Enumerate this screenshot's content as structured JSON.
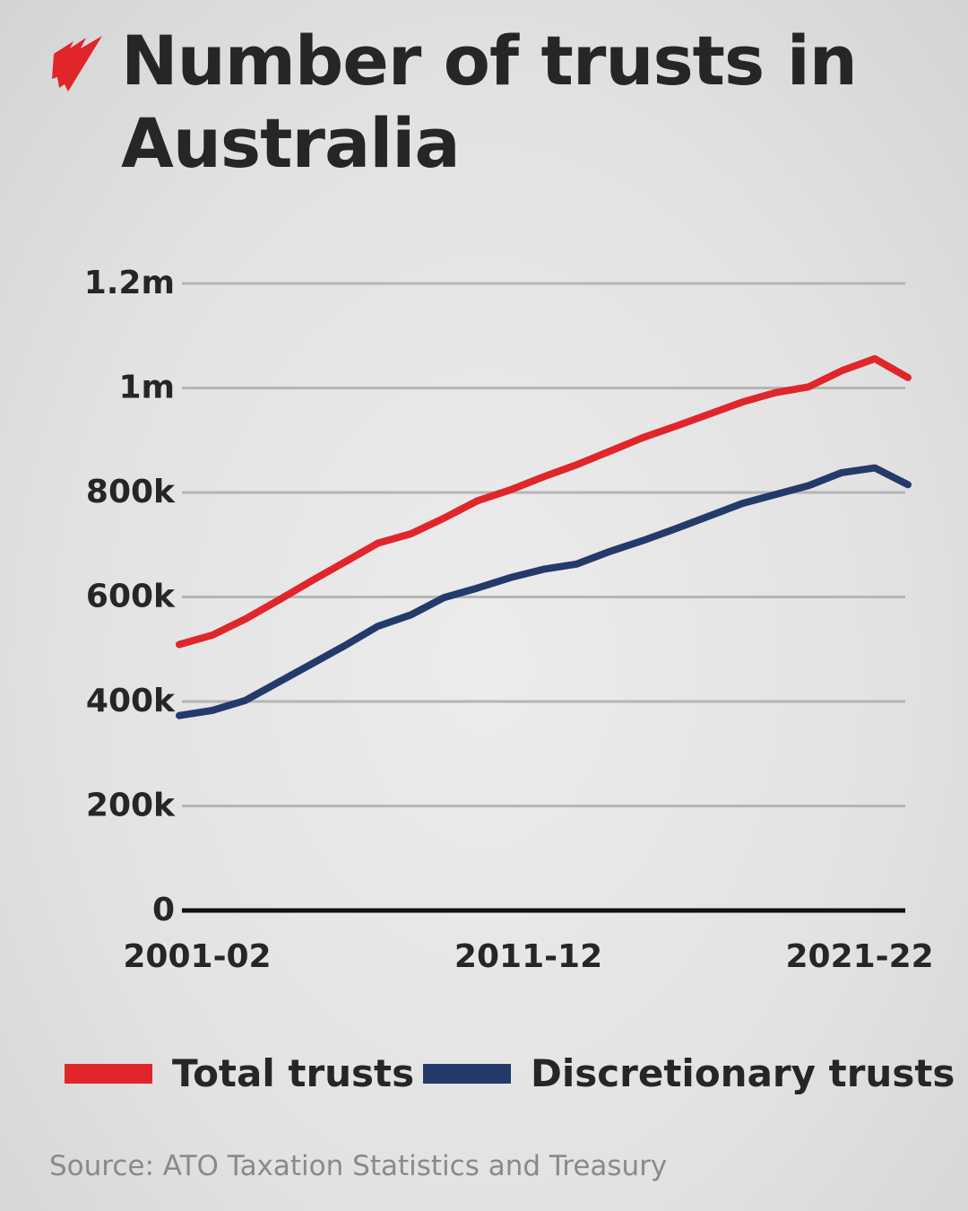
{
  "chart_data": {
    "type": "line",
    "title": "Number of trusts in Australia",
    "source": "Source: ATO Taxation Statistics and Treasury",
    "categories": [
      "2001-02",
      null,
      null,
      null,
      null,
      null,
      null,
      null,
      null,
      null,
      "2011-12",
      null,
      null,
      null,
      null,
      null,
      null,
      null,
      null,
      null,
      "2021-22",
      null,
      null
    ],
    "series": [
      {
        "name": "Total trusts",
        "color": "#e0262b",
        "values": [
          509000,
          527000,
          558000,
          594000,
          631000,
          667000,
          703000,
          721000,
          751000,
          784000,
          805000,
          830000,
          853000,
          879000,
          905000,
          927000,
          950000,
          973000,
          991000,
          1002000,
          1033000,
          1056000,
          1020000
        ]
      },
      {
        "name": "Discretionary trusts",
        "color": "#233a6b",
        "values": [
          373000,
          383000,
          402000,
          437000,
          472000,
          507000,
          544000,
          566000,
          599000,
          617000,
          637000,
          653000,
          663000,
          687000,
          708000,
          731000,
          755000,
          779000,
          796000,
          813000,
          838000,
          847000,
          815000
        ]
      }
    ],
    "ylim": [
      0,
      1200000
    ],
    "yticks": [
      0,
      {
        "value": 200000,
        "label": "200k"
      },
      {
        "value": 400000,
        "label": "400k"
      },
      {
        "value": 600000,
        "label": "600k"
      },
      {
        "value": 800000,
        "label": "800k"
      },
      {
        "value": 1000000,
        "label": "1m"
      },
      {
        "value": 1200000,
        "label": "1.2m"
      }
    ],
    "grid": true,
    "legend": "bottom"
  }
}
